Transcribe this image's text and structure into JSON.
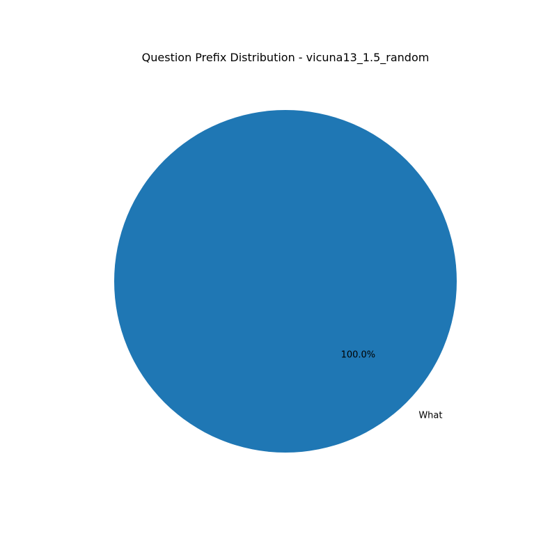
{
  "chart_data": {
    "type": "pie",
    "title": "Question Prefix Distribution - vicuna13_1.5_random",
    "slices": [
      {
        "label": "What",
        "value": 100.0,
        "percent_label": "100.0%",
        "color": "#1f77b4"
      }
    ],
    "start_angle_deg": 0,
    "direction": "counterclockwise",
    "legend": "none"
  }
}
